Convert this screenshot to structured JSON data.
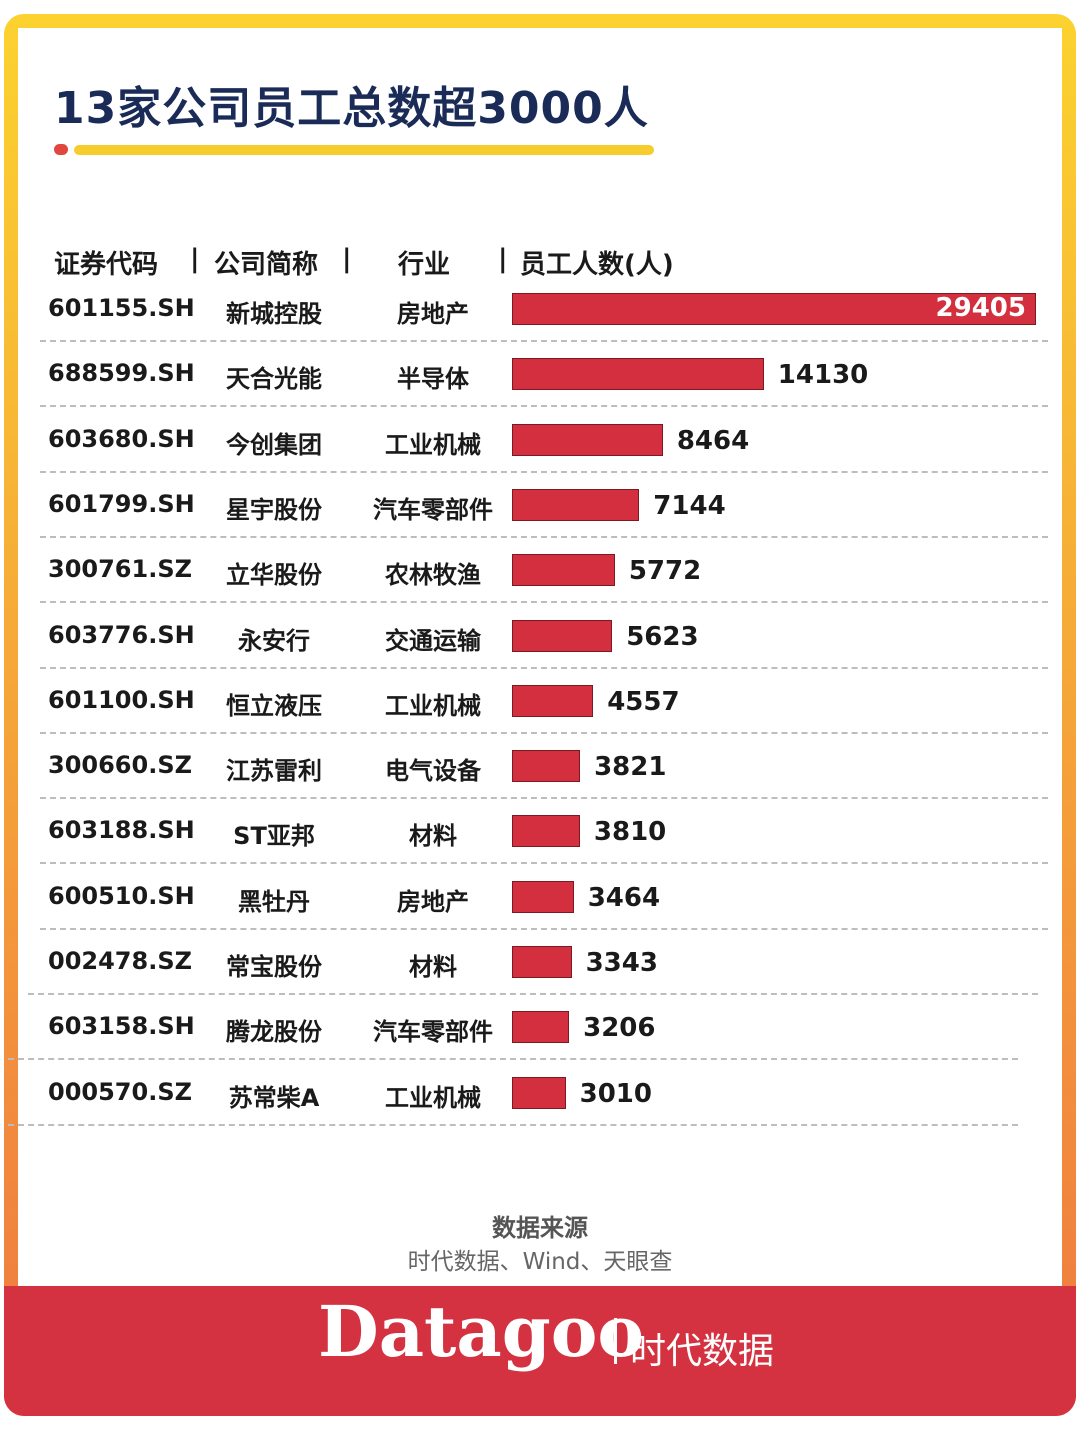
{
  "title": "13家公司员工总数超3000人",
  "headers": {
    "code": "证券代码",
    "name": "公司简称",
    "industry": "行业",
    "employees": "员工人数(人)",
    "sep": "|"
  },
  "chart_data": {
    "type": "bar",
    "orientation": "horizontal",
    "title": "13家公司员工总数超3000人",
    "xlabel": "",
    "ylabel": "",
    "rows": [
      {
        "code": "601155.SH",
        "name": "新城控股",
        "industry": "房地产",
        "value": 29405
      },
      {
        "code": "688599.SH",
        "name": "天合光能",
        "industry": "半导体",
        "value": 14130
      },
      {
        "code": "603680.SH",
        "name": "今创集团",
        "industry": "工业机械",
        "value": 8464
      },
      {
        "code": "601799.SH",
        "name": "星宇股份",
        "industry": "汽车零部件",
        "value": 7144
      },
      {
        "code": "300761.SZ",
        "name": "立华股份",
        "industry": "农林牧渔",
        "value": 5772
      },
      {
        "code": "603776.SH",
        "name": "永安行",
        "industry": "交通运输",
        "value": 5623
      },
      {
        "code": "601100.SH",
        "name": "恒立液压",
        "industry": "工业机械",
        "value": 4557
      },
      {
        "code": "300660.SZ",
        "name": "江苏雷利",
        "industry": "电气设备",
        "value": 3821
      },
      {
        "code": "603188.SH",
        "name": "ST亚邦",
        "industry": "材料",
        "value": 3810
      },
      {
        "code": "600510.SH",
        "name": "黑牡丹",
        "industry": "房地产",
        "value": 3464
      },
      {
        "code": "002478.SZ",
        "name": "常宝股份",
        "industry": "材料",
        "value": 3343
      },
      {
        "code": "603158.SH",
        "name": "腾龙股份",
        "industry": "汽车零部件",
        "value": 3206
      },
      {
        "code": "000570.SZ",
        "name": "苏常柴A",
        "industry": "工业机械",
        "value": 3010
      }
    ],
    "xlim": [
      0,
      29405
    ],
    "grid": false,
    "legend": "none",
    "bar_color": "#d32f3f"
  },
  "source": {
    "label": "数据来源",
    "text": "时代数据、Wind、天眼查"
  },
  "brand": {
    "logo": "Datagoo",
    "sep": "|",
    "name": "时代数据"
  },
  "colors": {
    "title": "#1a2b57",
    "accent_yellow": "#f6cd2c",
    "accent_red": "#d43241"
  }
}
